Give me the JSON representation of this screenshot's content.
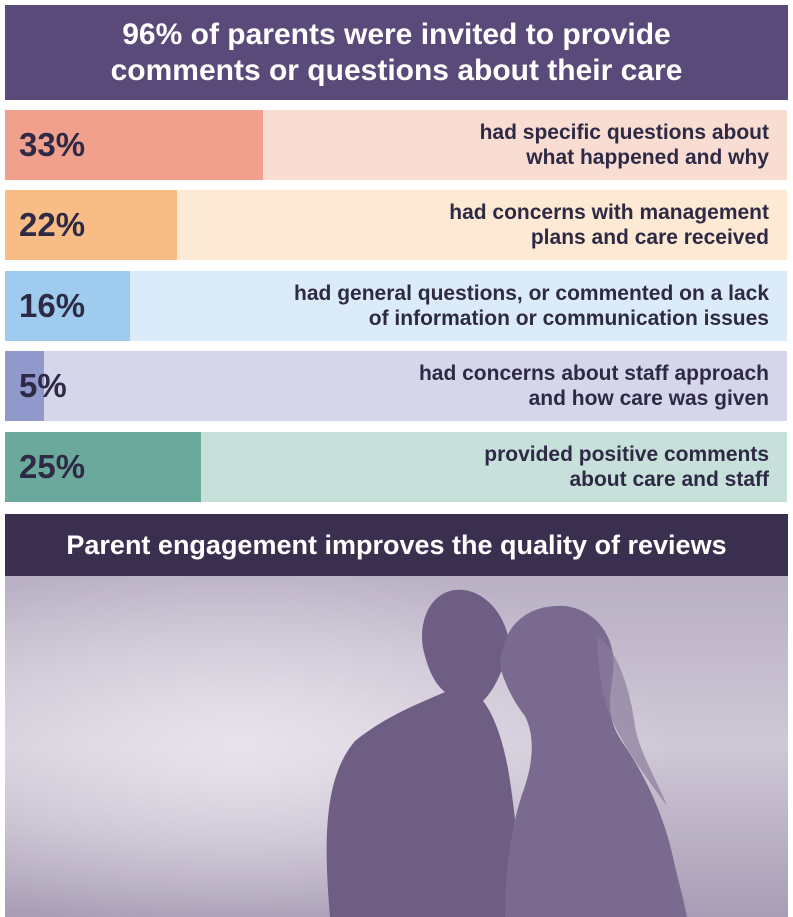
{
  "header": {
    "line1": "96% of parents were invited to provide",
    "line2": "comments or questions about their care"
  },
  "chart_data": {
    "type": "bar",
    "orientation": "horizontal",
    "xlim": [
      0,
      100
    ],
    "rows": [
      {
        "value": 33,
        "label": "33%",
        "line1": "had specific questions about",
        "line2": "what happened and why",
        "fill_color": "#f2a08e",
        "track_color": "#f9ddd3"
      },
      {
        "value": 22,
        "label": "22%",
        "line1": "had concerns with management",
        "line2": "plans and care received",
        "fill_color": "#f8bd86",
        "track_color": "#fde9d4"
      },
      {
        "value": 16,
        "label": "16%",
        "line1": "had general questions, or commented on a lack",
        "line2": "of information or communication issues",
        "fill_color": "#9fcbee",
        "track_color": "#dcebf8"
      },
      {
        "value": 5,
        "label": "5%",
        "line1": "had concerns about staff approach",
        "line2": "and how care was given",
        "fill_color": "#9098cc",
        "track_color": "#d6d6eb"
      },
      {
        "value": 25,
        "label": "25%",
        "line1": "provided positive comments",
        "line2": "about care and staff",
        "fill_color": "#6aa99b",
        "track_color": "#c8e0da"
      }
    ]
  },
  "banner": {
    "text": "Parent engagement improves the quality of reviews"
  },
  "photo": {
    "subject": "silhouette-couple-foreheads-touching"
  }
}
